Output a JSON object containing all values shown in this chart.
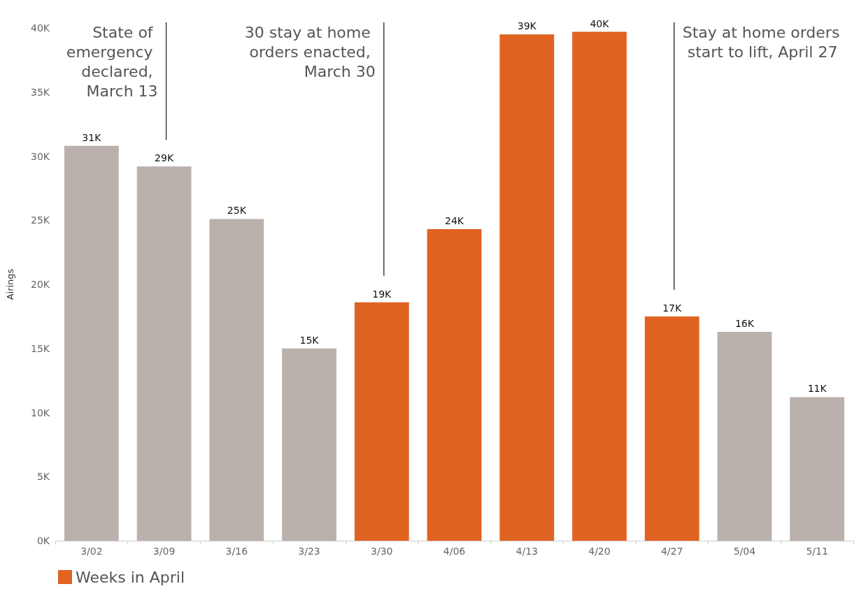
{
  "chart_data": {
    "type": "bar",
    "ylabel": "Airings",
    "categories": [
      "3/02",
      "3/09",
      "3/16",
      "3/23",
      "3/30",
      "4/06",
      "4/13",
      "4/20",
      "4/27",
      "5/04",
      "5/11"
    ],
    "series": [
      {
        "name": "Weeks in April",
        "color": "#e06321",
        "values": [
          null,
          null,
          null,
          null,
          18600,
          24300,
          39500,
          39700,
          17500,
          null,
          null
        ],
        "value_labels": [
          null,
          null,
          null,
          null,
          "19K",
          "24K",
          "39K",
          "40K",
          "17K",
          null,
          null
        ]
      },
      {
        "color": "#bab1ac",
        "values": [
          30800,
          29200,
          25100,
          15000,
          null,
          null,
          null,
          null,
          null,
          16300,
          11200
        ],
        "value_labels": [
          "31K",
          "29K",
          "25K",
          "15K",
          null,
          null,
          null,
          null,
          null,
          "16K",
          "11K"
        ]
      }
    ],
    "ylim": [
      0,
      40000
    ],
    "yticks": [
      {
        "value": 0,
        "label": "0K"
      },
      {
        "value": 5000,
        "label": "5K"
      },
      {
        "value": 10000,
        "label": "10K"
      },
      {
        "value": 15000,
        "label": "15K"
      },
      {
        "value": 20000,
        "label": "20K"
      },
      {
        "value": 25000,
        "label": "25K"
      },
      {
        "value": 30000,
        "label": "30K"
      },
      {
        "value": 35000,
        "label": "35K"
      },
      {
        "value": 40000,
        "label": "40K"
      }
    ],
    "grid": false,
    "legend": "bottom left",
    "ref_lines": [
      {
        "axis": "x",
        "value": "3/09",
        "label": "State of emergency declared, March 13",
        "color": "#222222"
      },
      {
        "axis": "x",
        "value": "3/30",
        "label": "30 stay at home orders enacted, March 30",
        "color": "#222222"
      },
      {
        "axis": "x",
        "value": "4/27",
        "label": "Stay at home orders start to lift, April 27",
        "color": "#222222"
      }
    ]
  }
}
